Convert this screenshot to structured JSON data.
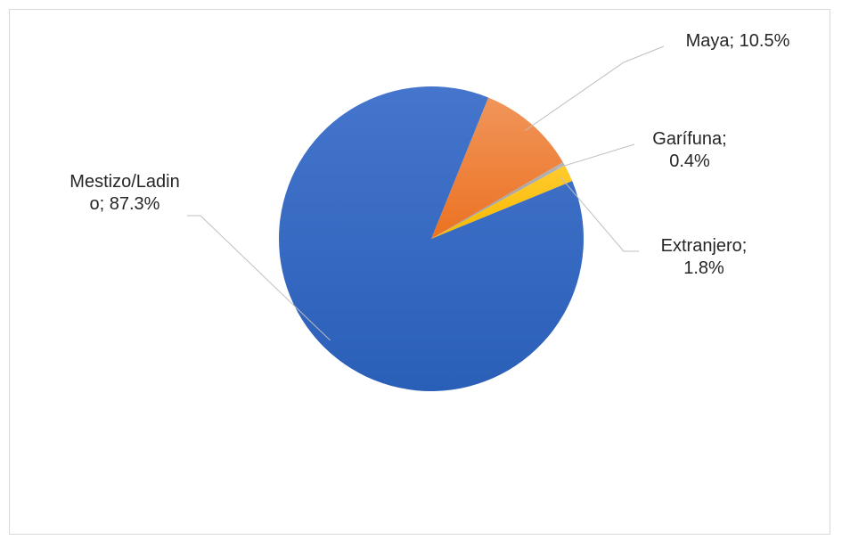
{
  "chart_data": {
    "type": "pie",
    "title": "",
    "legend": "none",
    "slices": [
      {
        "name": "Maya",
        "value": 10.5,
        "color": "#ed7d31",
        "label_lines": [
          "Maya; 10.5%"
        ]
      },
      {
        "name": "Garífuna",
        "value": 0.4,
        "color": "#a5a5a5",
        "label_lines": [
          "Garífuna;",
          "0.4%"
        ]
      },
      {
        "name": "Extranjero",
        "value": 1.8,
        "color": "#ffc000",
        "label_lines": [
          "Extranjero;",
          "1.8%"
        ]
      },
      {
        "name": "Mestizo/Ladino",
        "value": 87.3,
        "color": "#2f63b9",
        "label_lines": [
          "Mestizo/Ladin",
          "o; 87.3%"
        ]
      }
    ]
  }
}
